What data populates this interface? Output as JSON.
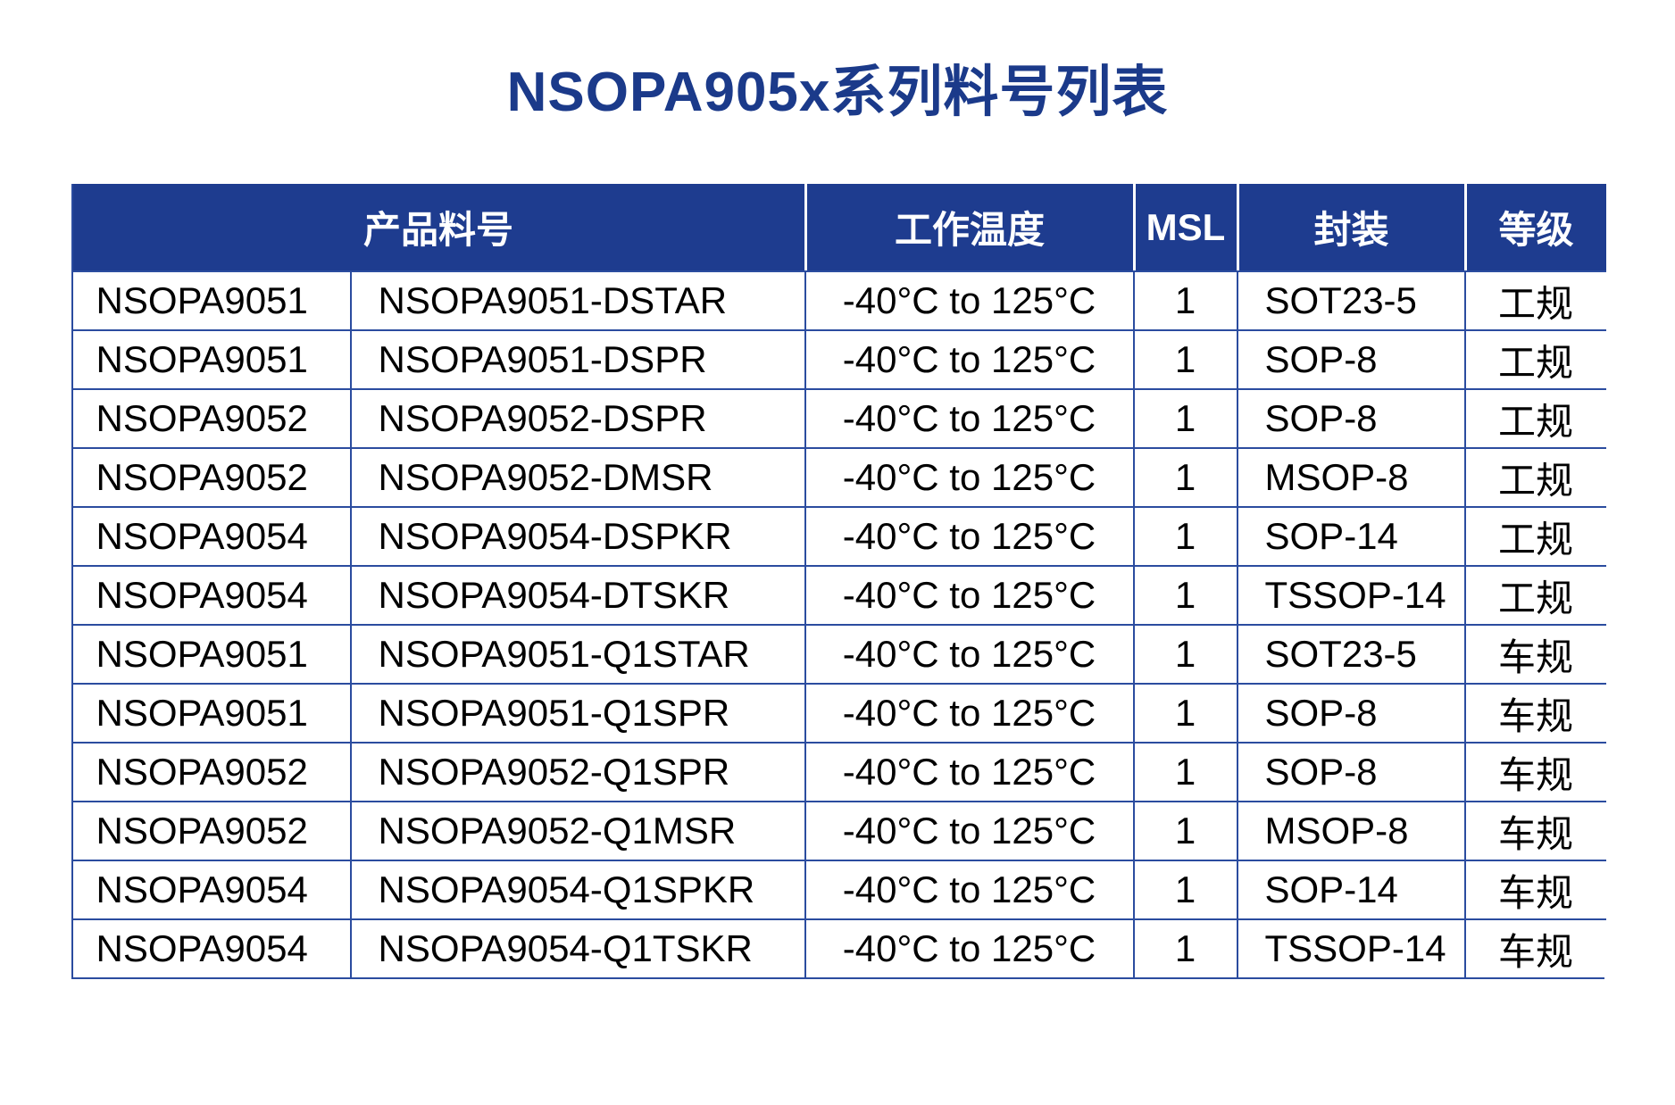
{
  "page": {
    "title": "NSOPA905x系列料号列表"
  },
  "colors": {
    "title_blue": "#1b3a8a",
    "header_blue": "#1e3c8f",
    "border_blue": "#2b4c9f",
    "header_text": "#ffffff",
    "body_text": "#000000"
  },
  "table": {
    "headers": [
      {
        "label": "产品料号",
        "span": 2
      },
      {
        "label": "工作温度",
        "span": 1
      },
      {
        "label": "MSL",
        "span": 1
      },
      {
        "label": "封装",
        "span": 1
      },
      {
        "label": "等级",
        "span": 1
      }
    ],
    "rows": [
      [
        "NSOPA9051",
        "NSOPA9051-DSTAR",
        "-40°C to 125°C",
        "1",
        "SOT23-5",
        "工规"
      ],
      [
        "NSOPA9051",
        "NSOPA9051-DSPR",
        "-40°C to 125°C",
        "1",
        "SOP-8",
        "工规"
      ],
      [
        "NSOPA9052",
        "NSOPA9052-DSPR",
        "-40°C to 125°C",
        "1",
        "SOP-8",
        "工规"
      ],
      [
        "NSOPA9052",
        "NSOPA9052-DMSR",
        "-40°C to 125°C",
        "1",
        "MSOP-8",
        "工规"
      ],
      [
        "NSOPA9054",
        "NSOPA9054-DSPKR",
        "-40°C to 125°C",
        "1",
        "SOP-14",
        "工规"
      ],
      [
        "NSOPA9054",
        "NSOPA9054-DTSKR",
        "-40°C to 125°C",
        "1",
        "TSSOP-14",
        "工规"
      ],
      [
        "NSOPA9051",
        "NSOPA9051-Q1STAR",
        "-40°C to 125°C",
        "1",
        "SOT23-5",
        "车规"
      ],
      [
        "NSOPA9051",
        "NSOPA9051-Q1SPR",
        "-40°C to 125°C",
        "1",
        "SOP-8",
        "车规"
      ],
      [
        "NSOPA9052",
        "NSOPA9052-Q1SPR",
        "-40°C to 125°C",
        "1",
        "SOP-8",
        "车规"
      ],
      [
        "NSOPA9052",
        "NSOPA9052-Q1MSR",
        "-40°C to 125°C",
        "1",
        "MSOP-8",
        "车规"
      ],
      [
        "NSOPA9054",
        "NSOPA9054-Q1SPKR",
        "-40°C to 125°C",
        "1",
        "SOP-14",
        "车规"
      ],
      [
        "NSOPA9054",
        "NSOPA9054-Q1TSKR",
        "-40°C to 125°C",
        "1",
        "TSSOP-14",
        "车规"
      ]
    ]
  }
}
